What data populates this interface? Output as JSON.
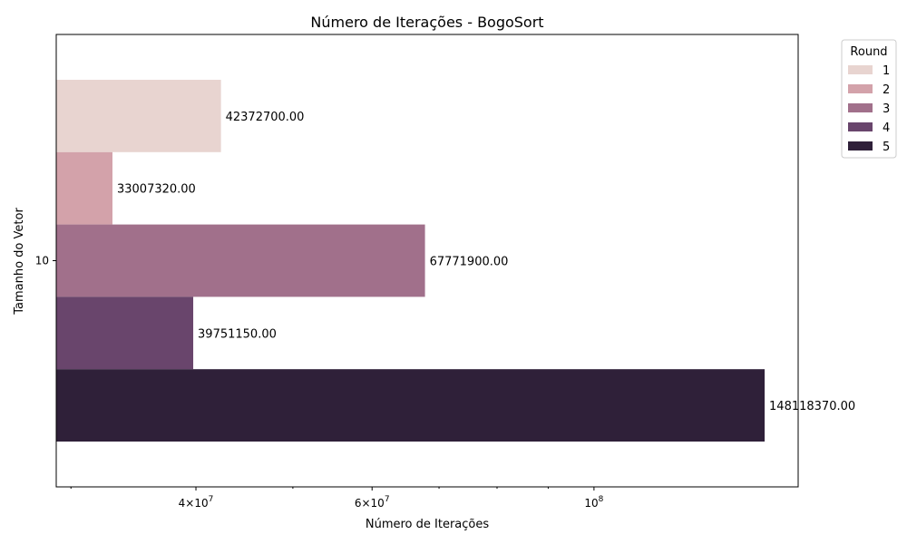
{
  "chart_data": {
    "type": "bar",
    "orientation": "horizontal",
    "title": "Número de Iterações - BogoSort",
    "xlabel": "Número de Iterações",
    "ylabel": "Tamanho do Vetor",
    "x_scale": "log",
    "xlim": [
      29000000,
      160000000
    ],
    "categories": [
      "10"
    ],
    "x_ticks": [
      {
        "value": 40000000,
        "base": "4",
        "mult": "×",
        "pow": "10",
        "exp": "7"
      },
      {
        "value": 60000000,
        "base": "6",
        "mult": "×",
        "pow": "10",
        "exp": "7"
      },
      {
        "value": 100000000,
        "base": "",
        "mult": "",
        "pow": "10",
        "exp": "8"
      }
    ],
    "minor_ticks": [
      30000000,
      50000000,
      70000000,
      80000000,
      90000000
    ],
    "legend": {
      "title": "Round",
      "placement": "outside-top-right"
    },
    "series": [
      {
        "name": "1",
        "values": [
          42372700
        ],
        "label": "42372700.00",
        "color": "#e8d4d0"
      },
      {
        "name": "2",
        "values": [
          33007320
        ],
        "label": "33007320.00",
        "color": "#d3a2aa"
      },
      {
        "name": "3",
        "values": [
          67771900
        ],
        "label": "67771900.00",
        "color": "#a1708b"
      },
      {
        "name": "4",
        "values": [
          39751150
        ],
        "label": "39751150.00",
        "color": "#69456c"
      },
      {
        "name": "5",
        "values": [
          148118370
        ],
        "label": "148118370.00",
        "color": "#2f2039"
      }
    ],
    "grid": false
  }
}
